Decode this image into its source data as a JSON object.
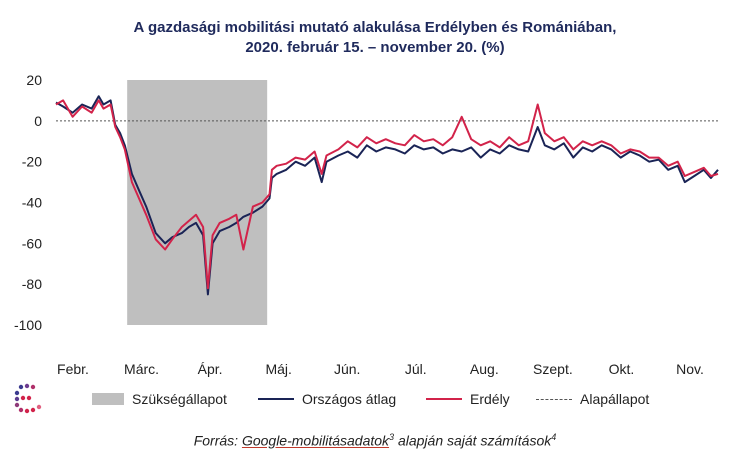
{
  "title_line1": "A gazdasági mobilitási mutató alakulása Erdélyben és Romániában,",
  "title_line2": "2020. február 15. – november 20. (%)",
  "source_prefix": "Forrás: ",
  "source_link": "Google-mobilitásadatok",
  "source_sup1": "3",
  "source_mid": " alapján saját számítások",
  "source_sup2": "4",
  "chart_data": {
    "type": "line",
    "ylim": [
      -100,
      20
    ],
    "yticks": [
      20,
      0,
      -20,
      -40,
      -60,
      -80,
      -100
    ],
    "month_labels": [
      "Febr.",
      "Márc.",
      "Ápr.",
      "Máj.",
      "Jún.",
      "Júl.",
      "Aug.",
      "Szept.",
      "Okt.",
      "Nov."
    ],
    "shaded_region": {
      "name": "Szükségállapot",
      "x_start": "2020-03-16",
      "x_end": "2020-05-14"
    },
    "baseline": {
      "name": "Alapállapot",
      "value": 0
    },
    "colors": {
      "shade": "#bfbfbf",
      "orszagos": "#1a2456",
      "erdely": "#d2234a",
      "baseline": "#555555"
    },
    "series": [
      {
        "name": "Országos átlag",
        "points": [
          [
            "2020-02-15",
            9
          ],
          [
            "2020-02-18",
            7
          ],
          [
            "2020-02-22",
            4
          ],
          [
            "2020-02-26",
            8
          ],
          [
            "2020-03-01",
            6
          ],
          [
            "2020-03-04",
            12
          ],
          [
            "2020-03-06",
            8
          ],
          [
            "2020-03-09",
            10
          ],
          [
            "2020-03-11",
            -2
          ],
          [
            "2020-03-13",
            -6
          ],
          [
            "2020-03-15",
            -12
          ],
          [
            "2020-03-18",
            -26
          ],
          [
            "2020-03-21",
            -34
          ],
          [
            "2020-03-24",
            -42
          ],
          [
            "2020-03-28",
            -55
          ],
          [
            "2020-04-01",
            -60
          ],
          [
            "2020-04-04",
            -57
          ],
          [
            "2020-04-08",
            -55
          ],
          [
            "2020-04-11",
            -52
          ],
          [
            "2020-04-14",
            -50
          ],
          [
            "2020-04-17",
            -56
          ],
          [
            "2020-04-19",
            -85
          ],
          [
            "2020-04-21",
            -60
          ],
          [
            "2020-04-24",
            -54
          ],
          [
            "2020-04-28",
            -52
          ],
          [
            "2020-05-01",
            -50
          ],
          [
            "2020-05-04",
            -47
          ],
          [
            "2020-05-08",
            -45
          ],
          [
            "2020-05-12",
            -42
          ],
          [
            "2020-05-15",
            -38
          ],
          [
            "2020-05-16",
            -28
          ],
          [
            "2020-05-18",
            -26
          ],
          [
            "2020-05-22",
            -24
          ],
          [
            "2020-05-26",
            -20
          ],
          [
            "2020-05-30",
            -22
          ],
          [
            "2020-06-03",
            -18
          ],
          [
            "2020-06-06",
            -30
          ],
          [
            "2020-06-08",
            -20
          ],
          [
            "2020-06-13",
            -17
          ],
          [
            "2020-06-17",
            -15
          ],
          [
            "2020-06-21",
            -18
          ],
          [
            "2020-06-25",
            -12
          ],
          [
            "2020-06-29",
            -15
          ],
          [
            "2020-07-03",
            -13
          ],
          [
            "2020-07-07",
            -14
          ],
          [
            "2020-07-11",
            -16
          ],
          [
            "2020-07-15",
            -12
          ],
          [
            "2020-07-19",
            -14
          ],
          [
            "2020-07-23",
            -13
          ],
          [
            "2020-07-27",
            -16
          ],
          [
            "2020-07-31",
            -14
          ],
          [
            "2020-08-04",
            -15
          ],
          [
            "2020-08-08",
            -13
          ],
          [
            "2020-08-12",
            -18
          ],
          [
            "2020-08-16",
            -14
          ],
          [
            "2020-08-20",
            -16
          ],
          [
            "2020-08-24",
            -12
          ],
          [
            "2020-08-28",
            -14
          ],
          [
            "2020-09-01",
            -15
          ],
          [
            "2020-09-05",
            -3
          ],
          [
            "2020-09-08",
            -12
          ],
          [
            "2020-09-12",
            -14
          ],
          [
            "2020-09-16",
            -11
          ],
          [
            "2020-09-20",
            -18
          ],
          [
            "2020-09-24",
            -13
          ],
          [
            "2020-09-28",
            -15
          ],
          [
            "2020-10-02",
            -12
          ],
          [
            "2020-10-06",
            -14
          ],
          [
            "2020-10-10",
            -18
          ],
          [
            "2020-10-14",
            -15
          ],
          [
            "2020-10-18",
            -17
          ],
          [
            "2020-10-22",
            -20
          ],
          [
            "2020-10-26",
            -19
          ],
          [
            "2020-10-30",
            -24
          ],
          [
            "2020-11-03",
            -22
          ],
          [
            "2020-11-06",
            -30
          ],
          [
            "2020-11-10",
            -27
          ],
          [
            "2020-11-14",
            -24
          ],
          [
            "2020-11-17",
            -28
          ],
          [
            "2020-11-20",
            -24
          ]
        ]
      },
      {
        "name": "Erdély",
        "points": [
          [
            "2020-02-15",
            8
          ],
          [
            "2020-02-18",
            10
          ],
          [
            "2020-02-22",
            2
          ],
          [
            "2020-02-26",
            7
          ],
          [
            "2020-03-01",
            4
          ],
          [
            "2020-03-04",
            10
          ],
          [
            "2020-03-06",
            6
          ],
          [
            "2020-03-09",
            8
          ],
          [
            "2020-03-11",
            -3
          ],
          [
            "2020-03-13",
            -8
          ],
          [
            "2020-03-15",
            -14
          ],
          [
            "2020-03-18",
            -30
          ],
          [
            "2020-03-21",
            -38
          ],
          [
            "2020-03-24",
            -46
          ],
          [
            "2020-03-28",
            -58
          ],
          [
            "2020-04-01",
            -63
          ],
          [
            "2020-04-04",
            -58
          ],
          [
            "2020-04-08",
            -52
          ],
          [
            "2020-04-11",
            -49
          ],
          [
            "2020-04-14",
            -46
          ],
          [
            "2020-04-17",
            -52
          ],
          [
            "2020-04-19",
            -82
          ],
          [
            "2020-04-21",
            -56
          ],
          [
            "2020-04-24",
            -50
          ],
          [
            "2020-04-28",
            -48
          ],
          [
            "2020-05-01",
            -46
          ],
          [
            "2020-05-04",
            -63
          ],
          [
            "2020-05-08",
            -42
          ],
          [
            "2020-05-12",
            -40
          ],
          [
            "2020-05-15",
            -36
          ],
          [
            "2020-05-16",
            -24
          ],
          [
            "2020-05-18",
            -22
          ],
          [
            "2020-05-22",
            -21
          ],
          [
            "2020-05-26",
            -18
          ],
          [
            "2020-05-30",
            -19
          ],
          [
            "2020-06-03",
            -15
          ],
          [
            "2020-06-06",
            -26
          ],
          [
            "2020-06-08",
            -17
          ],
          [
            "2020-06-13",
            -14
          ],
          [
            "2020-06-17",
            -10
          ],
          [
            "2020-06-21",
            -13
          ],
          [
            "2020-06-25",
            -8
          ],
          [
            "2020-06-29",
            -11
          ],
          [
            "2020-07-03",
            -9
          ],
          [
            "2020-07-07",
            -11
          ],
          [
            "2020-07-11",
            -12
          ],
          [
            "2020-07-15",
            -7
          ],
          [
            "2020-07-19",
            -10
          ],
          [
            "2020-07-23",
            -9
          ],
          [
            "2020-07-27",
            -12
          ],
          [
            "2020-07-31",
            -8
          ],
          [
            "2020-08-04",
            2
          ],
          [
            "2020-08-08",
            -9
          ],
          [
            "2020-08-12",
            -12
          ],
          [
            "2020-08-16",
            -10
          ],
          [
            "2020-08-20",
            -13
          ],
          [
            "2020-08-24",
            -8
          ],
          [
            "2020-08-28",
            -12
          ],
          [
            "2020-09-01",
            -10
          ],
          [
            "2020-09-05",
            8
          ],
          [
            "2020-09-08",
            -6
          ],
          [
            "2020-09-12",
            -10
          ],
          [
            "2020-09-16",
            -8
          ],
          [
            "2020-09-20",
            -14
          ],
          [
            "2020-09-24",
            -10
          ],
          [
            "2020-09-28",
            -12
          ],
          [
            "2020-10-02",
            -10
          ],
          [
            "2020-10-06",
            -12
          ],
          [
            "2020-10-10",
            -16
          ],
          [
            "2020-10-14",
            -14
          ],
          [
            "2020-10-18",
            -15
          ],
          [
            "2020-10-22",
            -18
          ],
          [
            "2020-10-26",
            -18
          ],
          [
            "2020-10-30",
            -22
          ],
          [
            "2020-11-03",
            -20
          ],
          [
            "2020-11-06",
            -27
          ],
          [
            "2020-11-10",
            -25
          ],
          [
            "2020-11-14",
            -23
          ],
          [
            "2020-11-17",
            -27
          ],
          [
            "2020-11-20",
            -26
          ]
        ]
      }
    ]
  }
}
